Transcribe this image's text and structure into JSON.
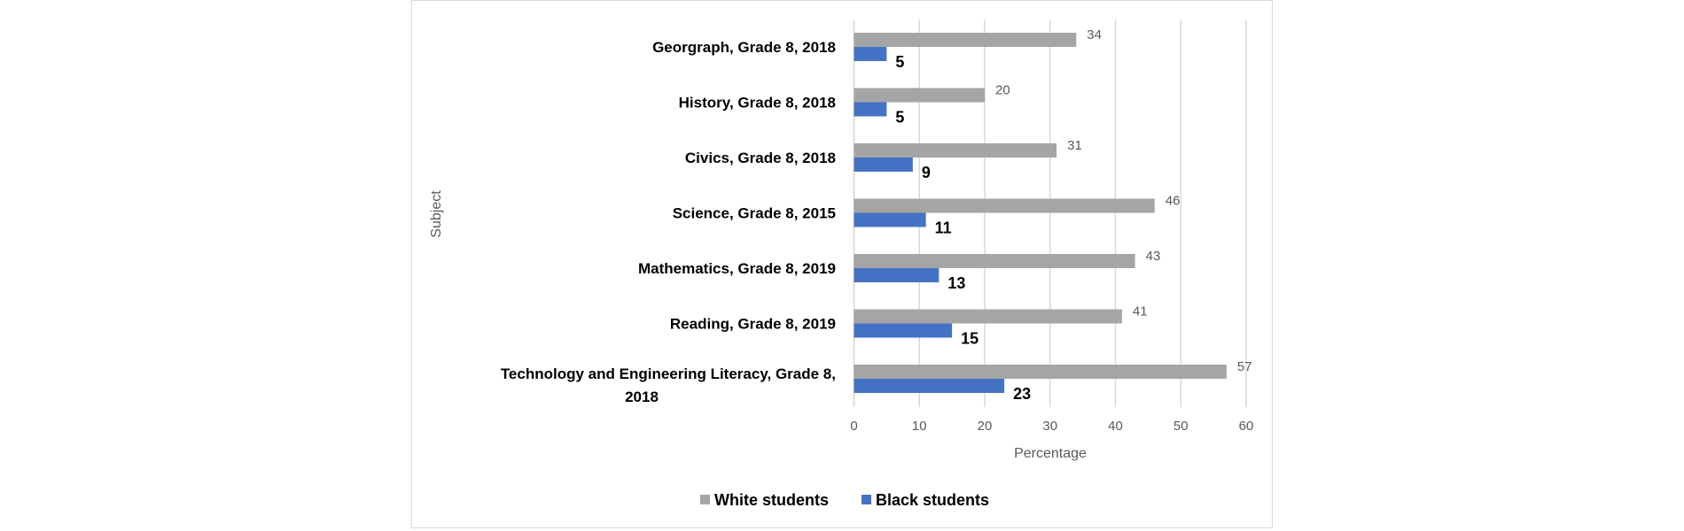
{
  "chart_data": {
    "type": "bar",
    "orientation": "horizontal",
    "categories": [
      "Georgraph, Grade 8, 2018",
      "History, Grade 8, 2018",
      "Civics, Grade 8, 2018",
      "Science, Grade 8, 2015",
      "Mathematics, Grade 8, 2019",
      "Reading, Grade 8, 2019",
      "Technology and Engineering Literacy, Grade 8, 2018"
    ],
    "category_lines": [
      [
        "Georgraph, Grade 8, 2018"
      ],
      [
        "History, Grade 8, 2018"
      ],
      [
        "Civics, Grade 8, 2018"
      ],
      [
        "Science, Grade 8, 2015"
      ],
      [
        "Mathematics, Grade 8, 2019"
      ],
      [
        "Reading, Grade 8, 2019"
      ],
      [
        "Technology and Engineering Literacy, Grade 8,",
        "2018"
      ]
    ],
    "series": [
      {
        "name": "White students",
        "color": "#a5a5a5",
        "values": [
          34,
          20,
          31,
          46,
          43,
          41,
          57
        ]
      },
      {
        "name": "Black students",
        "color": "#4472c4",
        "values": [
          5,
          5,
          9,
          11,
          13,
          15,
          23
        ]
      }
    ],
    "xlabel": "Percentage",
    "ylabel": "Subject",
    "xlim": [
      0,
      60
    ],
    "xticks": [
      "0",
      "10",
      "20",
      "30",
      "40",
      "50",
      "60"
    ],
    "grid": true,
    "legend": "bottom"
  }
}
